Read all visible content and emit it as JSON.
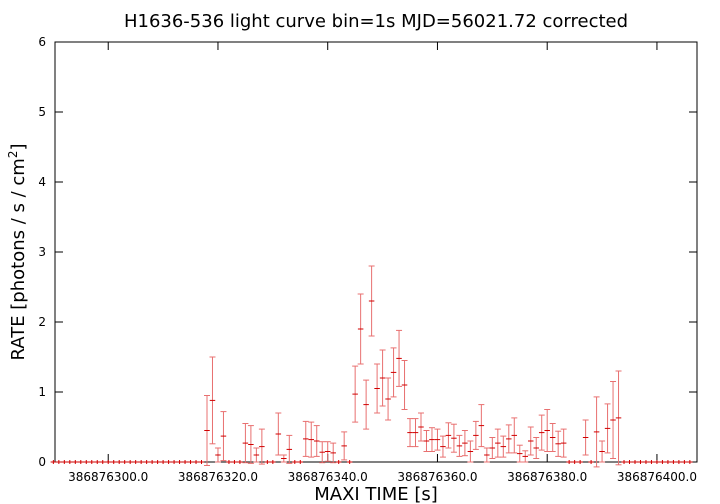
{
  "chart_data": {
    "type": "errorbar",
    "title": "H1636-536 light curve bin=1s MJD=56021.72 corrected",
    "x_label": "MAXI TIME [s]",
    "y_label": "RATE [photons / s / cm",
    "y_label_sup": "2",
    "y_label_end": "]",
    "xlim": [
      386876290.3,
      386876407.3
    ],
    "ylim": [
      0,
      6
    ],
    "xticks": [
      {
        "value": 386876300,
        "label": "386876300.0"
      },
      {
        "value": 386876320,
        "label": "386876320.0"
      },
      {
        "value": 386876340,
        "label": "386876340.0"
      },
      {
        "value": 386876360,
        "label": "386876360.0"
      },
      {
        "value": 386876380,
        "label": "386876380.0"
      },
      {
        "value": 386876400,
        "label": "386876400.0"
      }
    ],
    "yticks": [
      0,
      1,
      2,
      3,
      4,
      5,
      6
    ],
    "x": [
      386876290,
      386876291,
      386876292,
      386876293,
      386876294,
      386876295,
      386876296,
      386876297,
      386876298,
      386876299,
      386876300,
      386876301,
      386876302,
      386876303,
      386876304,
      386876305,
      386876306,
      386876307,
      386876308,
      386876309,
      386876310,
      386876311,
      386876312,
      386876313,
      386876314,
      386876315,
      386876316,
      386876317,
      386876318,
      386876319,
      386876320,
      386876321,
      386876322,
      386876323,
      386876324,
      386876325,
      386876326,
      386876327,
      386876328,
      386876329,
      386876330,
      386876331,
      386876332,
      386876333,
      386876334,
      386876335,
      386876336,
      386876337,
      386876338,
      386876339,
      386876340,
      386876341,
      386876342,
      386876343,
      386876344,
      386876345,
      386876346,
      386876347,
      386876348,
      386876349,
      386876350,
      386876351,
      386876352,
      386876353,
      386876354,
      386876355,
      386876356,
      386876357,
      386876358,
      386876359,
      386876360,
      386876361,
      386876362,
      386876363,
      386876364,
      386876365,
      386876366,
      386876367,
      386876368,
      386876369,
      386876370,
      386876371,
      386876372,
      386876373,
      386876374,
      386876375,
      386876376,
      386876377,
      386876378,
      386876379,
      386876380,
      386876381,
      386876382,
      386876383,
      386876384,
      386876385,
      386876386,
      386876387,
      386876388,
      386876389,
      386876390,
      386876391,
      386876392,
      386876393,
      386876394,
      386876395,
      386876396,
      386876397,
      386876398,
      386876399,
      386876400,
      386876401,
      386876402,
      386876403,
      386876404,
      386876405,
      386876406
    ],
    "series": [
      {
        "color": "#d00000",
        "error_color": "#e87070",
        "values": [
          0,
          0,
          0,
          0,
          0,
          0,
          0,
          0,
          0,
          0,
          0,
          0,
          0,
          0,
          0,
          0,
          0,
          0,
          0,
          0,
          0,
          0,
          0,
          0,
          0,
          0,
          0,
          0,
          0.45,
          0.88,
          0.1,
          0.37,
          0,
          0,
          0,
          0.27,
          0.25,
          0.1,
          0.22,
          0,
          0,
          0.4,
          0.05,
          0.18,
          0,
          0,
          0.33,
          0.32,
          0.3,
          0.14,
          0.15,
          0.13,
          0,
          0.23,
          0,
          0.97,
          1.9,
          0.82,
          2.3,
          1.05,
          1.2,
          0.9,
          1.28,
          1.48,
          1.1,
          0.42,
          0.42,
          0.5,
          0.3,
          0.32,
          0.32,
          0.22,
          0.38,
          0.34,
          0.23,
          0.27,
          0.15,
          0.38,
          0.52,
          0.1,
          0.2,
          0.27,
          0.22,
          0.33,
          0.38,
          0.12,
          0.08,
          0.3,
          0.2,
          0.42,
          0.45,
          0.35,
          0.26,
          0.27,
          0,
          0,
          0,
          0.35,
          0,
          0.43,
          0.15,
          0.48,
          0.6,
          0.63,
          0,
          0,
          0,
          0,
          0,
          0,
          0,
          0,
          0,
          0,
          0,
          0,
          0
        ],
        "errors": [
          0,
          0,
          0,
          0,
          0,
          0,
          0,
          0,
          0,
          0,
          0,
          0,
          0,
          0,
          0,
          0,
          0,
          0,
          0,
          0,
          0,
          0,
          0,
          0,
          0,
          0,
          0,
          0,
          0.5,
          0.62,
          0.1,
          0.35,
          0,
          0,
          0,
          0.28,
          0.27,
          0.1,
          0.25,
          0,
          0,
          0.3,
          0.05,
          0.2,
          0,
          0,
          0.25,
          0.25,
          0.22,
          0.15,
          0.14,
          0.14,
          0,
          0.2,
          0,
          0.4,
          0.5,
          0.35,
          0.5,
          0.35,
          0.4,
          0.3,
          0.35,
          0.4,
          0.35,
          0.2,
          0.2,
          0.2,
          0.15,
          0.17,
          0.15,
          0.15,
          0.18,
          0.2,
          0.15,
          0.18,
          0.15,
          0.2,
          0.3,
          0.1,
          0.15,
          0.2,
          0.15,
          0.2,
          0.25,
          0.12,
          0.08,
          0.2,
          0.15,
          0.25,
          0.3,
          0.2,
          0.18,
          0.2,
          0,
          0,
          0,
          0.25,
          0,
          0.5,
          0.15,
          0.35,
          0.55,
          0.67,
          0,
          0,
          0,
          0,
          0,
          0,
          0,
          0,
          0,
          0,
          0,
          0,
          0
        ]
      }
    ]
  }
}
